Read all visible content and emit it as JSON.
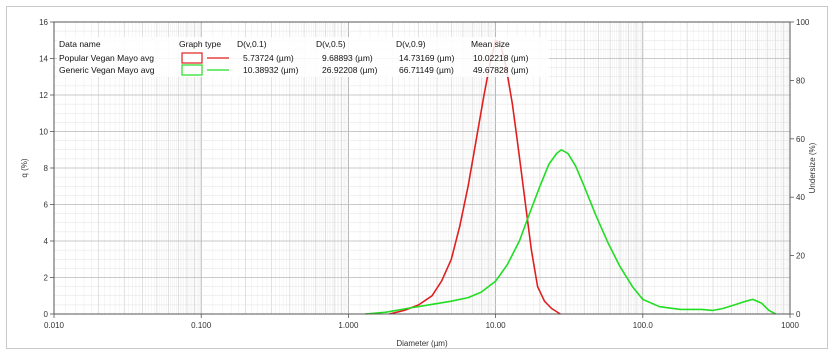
{
  "chart_data": {
    "type": "line",
    "x_scale": "log",
    "xlim": [
      0.01,
      1000
    ],
    "y_left_lim": [
      0,
      16
    ],
    "y_right_lim": [
      0,
      100
    ],
    "xlabel": "Diameter (µm)",
    "ylabel_left": "q (%)",
    "ylabel_right": "Undersize (%)",
    "x_tick_labels": [
      "0.010",
      "0.100",
      "1.000",
      "10.00",
      "100.0",
      "1000"
    ],
    "x_tick_values": [
      0.01,
      0.1,
      1,
      10,
      100,
      1000
    ],
    "y_left_ticks": [
      0,
      2,
      4,
      6,
      8,
      10,
      12,
      14,
      16
    ],
    "y_right_ticks": [
      0,
      20,
      40,
      60,
      80,
      100
    ],
    "grid": true,
    "legend": {
      "headers": {
        "name": "Data name",
        "graph_type": "Graph type",
        "d10": "D(v,0.1)",
        "d50": "D(v,0.5)",
        "d90": "D(v,0.9)",
        "mean": "Mean size"
      },
      "rows": [
        {
          "name": "Popular Vegan Mayo avg",
          "color": "#e02020",
          "d10": "5.73724 (µm)",
          "d50": "9.68893 (µm)",
          "d90": "14.73169 (µm)",
          "mean": "10.02218 (µm)"
        },
        {
          "name": "Generic Vegan Mayo avg",
          "color": "#22dd22",
          "d10": "10.38932 (µm)",
          "d50": "26.92208 (µm)",
          "d90": "66.71149 (µm)",
          "mean": "49.67828 (µm)"
        }
      ]
    },
    "series": [
      {
        "name": "Popular Vegan Mayo avg",
        "color": "#e02020",
        "x": [
          1.9,
          2.4,
          3.0,
          3.7,
          4.3,
          5.0,
          5.7,
          6.5,
          7.4,
          8.3,
          9.2,
          10.0,
          10.8,
          11.8,
          13.0,
          14.3,
          15.8,
          17.5,
          19.3,
          21.5,
          24.0,
          27.5
        ],
        "y": [
          0.0,
          0.2,
          0.5,
          1.0,
          1.8,
          3.0,
          4.8,
          7.0,
          9.6,
          11.9,
          13.8,
          15.0,
          14.8,
          13.5,
          11.5,
          9.0,
          6.3,
          3.5,
          1.5,
          0.7,
          0.3,
          0.0
        ]
      },
      {
        "name": "Generic Vegan Mayo avg",
        "color": "#22dd22",
        "x": [
          1.3,
          1.8,
          2.5,
          3.5,
          5.0,
          6.5,
          8.0,
          10.0,
          12.0,
          14.5,
          17.0,
          20.0,
          23.0,
          26.0,
          28.0,
          31.0,
          35.0,
          40.0,
          48.0,
          58.0,
          70.0,
          85.0,
          100.0,
          130.0,
          180.0,
          250.0,
          300.0,
          350.0,
          420.0,
          500.0,
          560.0,
          640.0,
          720.0,
          800.0
        ],
        "y": [
          0.0,
          0.1,
          0.3,
          0.5,
          0.7,
          0.9,
          1.2,
          1.8,
          2.7,
          4.0,
          5.5,
          7.0,
          8.2,
          8.8,
          9.0,
          8.8,
          8.1,
          7.0,
          5.4,
          3.9,
          2.6,
          1.5,
          0.8,
          0.4,
          0.25,
          0.25,
          0.2,
          0.3,
          0.5,
          0.7,
          0.8,
          0.6,
          0.2,
          0.0
        ]
      }
    ]
  }
}
